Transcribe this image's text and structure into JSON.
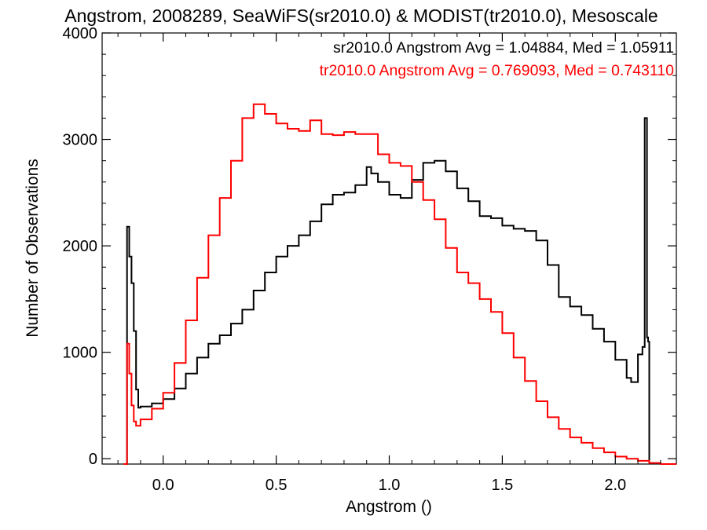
{
  "chart_data": {
    "type": "line",
    "title": "Angstrom, 2008289, SeaWiFS(sr2010.0) & MODIST(tr2010.0), Mesoscale",
    "xlabel": "Angstrom ()",
    "ylabel": "Number of Observations",
    "xlim": [
      -0.27,
      2.27
    ],
    "ylim": [
      -50,
      4000
    ],
    "x_ticks": [
      0.0,
      0.5,
      1.0,
      1.5,
      2.0
    ],
    "x_tick_labels": [
      "0.0",
      "0.5",
      "1.0",
      "1.5",
      "2.0"
    ],
    "y_ticks": [
      0,
      1000,
      2000,
      3000,
      4000
    ],
    "y_tick_labels": [
      "0",
      "1000",
      "2000",
      "3000",
      "4000"
    ],
    "grid": false,
    "legend_placement": "top-right",
    "annotations": [
      {
        "text": "sr2010.0 Angstrom Avg = 1.04884, Med = 1.05911",
        "color": "#000000"
      },
      {
        "text": "tr2010.0 Angstrom Avg = 0.769093, Med = 0.743110",
        "color": "#ff0000"
      }
    ],
    "series": [
      {
        "color": "#000000",
        "style": "step",
        "x": [
          -0.165,
          -0.16,
          -0.15,
          -0.14,
          -0.13,
          -0.12,
          -0.11,
          -0.1,
          -0.05,
          0.0,
          0.05,
          0.1,
          0.15,
          0.2,
          0.25,
          0.3,
          0.35,
          0.4,
          0.45,
          0.5,
          0.55,
          0.6,
          0.65,
          0.7,
          0.75,
          0.8,
          0.85,
          0.9,
          0.92,
          0.95,
          1.0,
          1.05,
          1.1,
          1.15,
          1.2,
          1.25,
          1.3,
          1.35,
          1.4,
          1.45,
          1.5,
          1.55,
          1.6,
          1.65,
          1.7,
          1.75,
          1.8,
          1.85,
          1.9,
          1.95,
          2.0,
          2.05,
          2.07,
          2.1,
          2.12,
          2.13,
          2.14,
          2.145,
          2.15
        ],
        "y": [
          -50,
          2180,
          1900,
          1650,
          1200,
          650,
          480,
          490,
          520,
          560,
          660,
          800,
          950,
          1080,
          1160,
          1270,
          1400,
          1580,
          1750,
          1900,
          2000,
          2100,
          2230,
          2390,
          2480,
          2500,
          2570,
          2740,
          2680,
          2600,
          2480,
          2450,
          2620,
          2780,
          2800,
          2700,
          2540,
          2420,
          2280,
          2260,
          2190,
          2160,
          2140,
          2050,
          1820,
          1520,
          1430,
          1350,
          1220,
          1100,
          930,
          760,
          720,
          980,
          1050,
          3200,
          1140,
          1100,
          -50
        ]
      },
      {
        "color": "#ff0000",
        "style": "step",
        "x": [
          -0.175,
          -0.165,
          -0.16,
          -0.15,
          -0.14,
          -0.13,
          -0.12,
          -0.1,
          -0.05,
          0.0,
          0.05,
          0.1,
          0.15,
          0.2,
          0.25,
          0.3,
          0.35,
          0.4,
          0.45,
          0.5,
          0.55,
          0.6,
          0.65,
          0.7,
          0.75,
          0.8,
          0.85,
          0.9,
          0.95,
          1.0,
          1.05,
          1.1,
          1.15,
          1.2,
          1.25,
          1.3,
          1.35,
          1.4,
          1.45,
          1.5,
          1.55,
          1.6,
          1.65,
          1.7,
          1.75,
          1.8,
          1.85,
          1.9,
          1.95,
          2.0,
          2.05,
          2.1,
          2.15,
          2.2,
          2.27
        ],
        "y": [
          -50,
          -50,
          1080,
          800,
          500,
          350,
          310,
          370,
          470,
          620,
          900,
          1300,
          1700,
          2100,
          2450,
          2800,
          3200,
          3330,
          3240,
          3150,
          3100,
          3080,
          3180,
          3050,
          3040,
          3070,
          3050,
          3050,
          2860,
          2780,
          2750,
          2600,
          2430,
          2250,
          1980,
          1750,
          1650,
          1500,
          1380,
          1180,
          950,
          730,
          540,
          390,
          280,
          200,
          150,
          100,
          60,
          20,
          0,
          -20,
          -40,
          -50,
          -50
        ]
      }
    ]
  }
}
